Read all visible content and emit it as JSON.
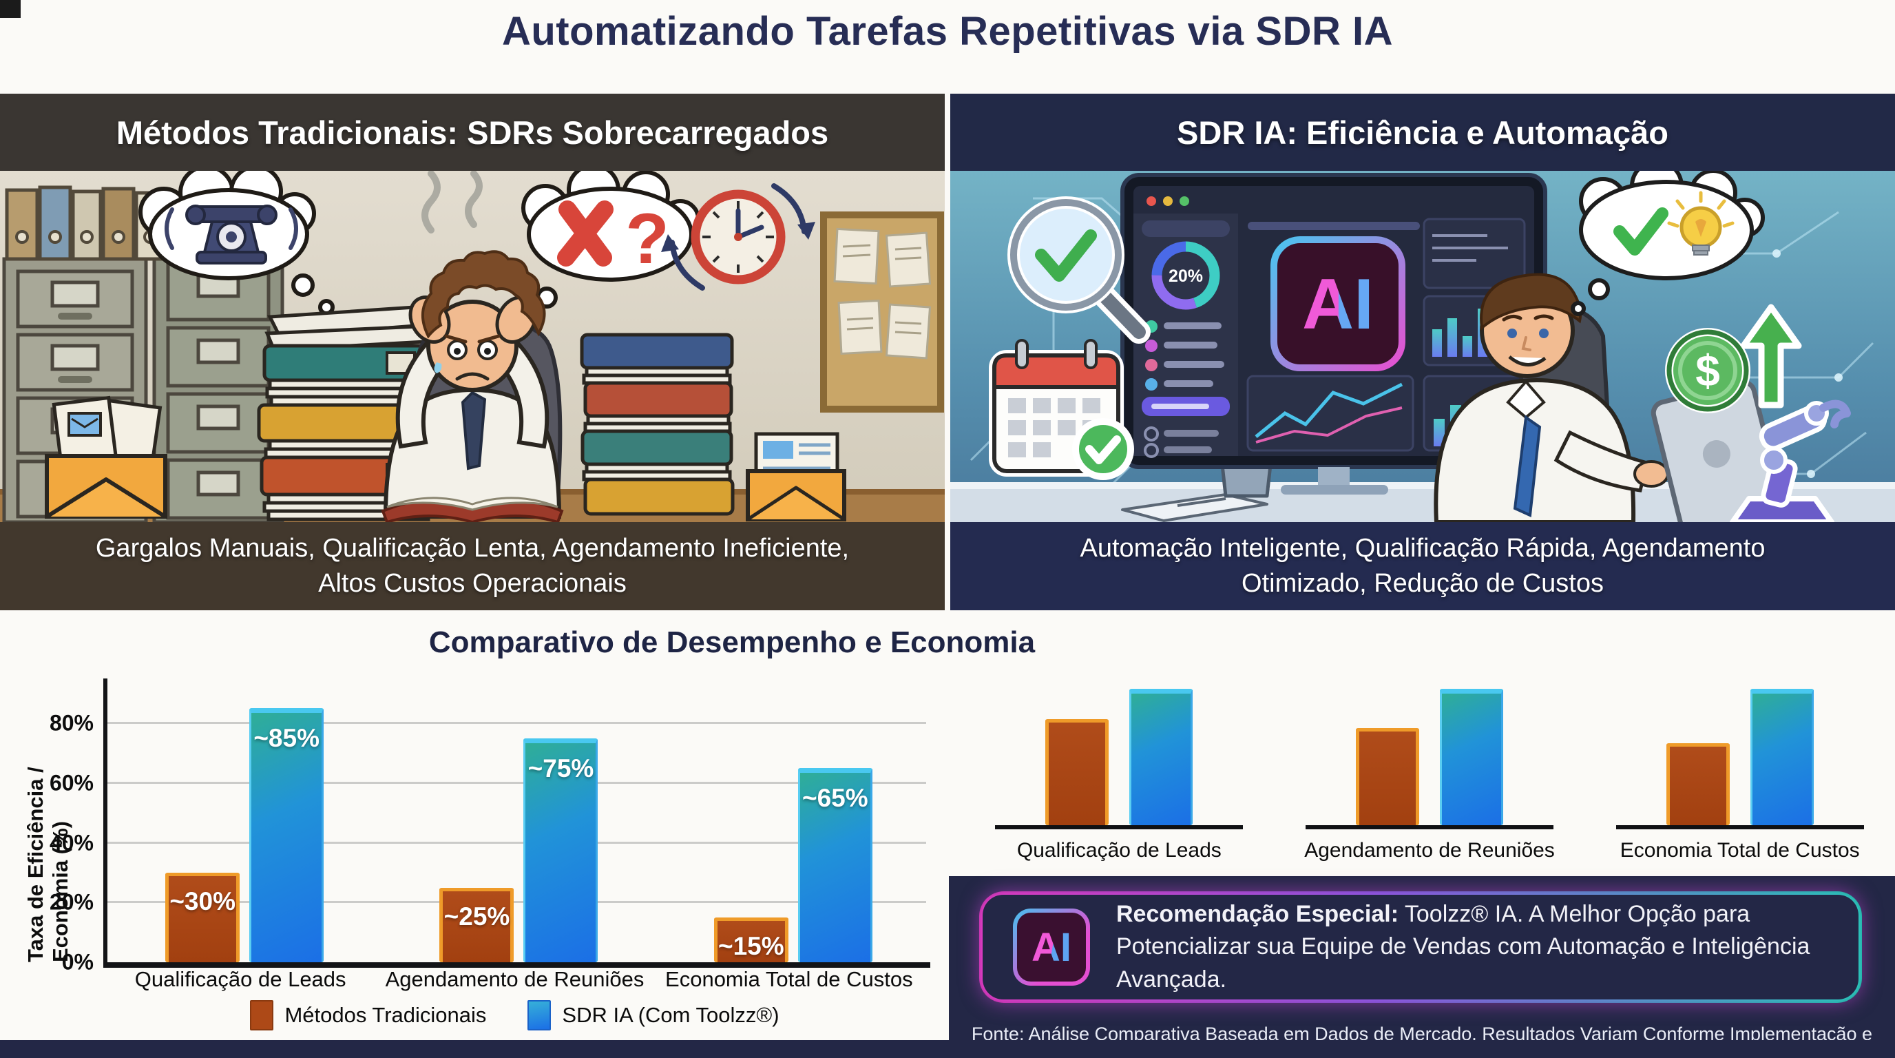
{
  "title": "Automatizando Tarefas Repetitivas via SDR IA",
  "left_panel": {
    "header": "Métodos Tradicionais: SDRs Sobrecarregados",
    "caption_line1": "Gargalos Manuais, Qualificação Lenta, Agendamento Ineficiente,",
    "caption_line2": "Altos Custos Operacionais",
    "scene": {
      "question_mark": "?",
      "icons": [
        "filing-cabinets",
        "binders-row",
        "smoke",
        "ringing-phone-thought-bubble",
        "error-question-thought-bubble",
        "clock-with-arrows",
        "corkboard-notes",
        "mail-stack-sticker",
        "email-letter-sticker",
        "binder-stacks",
        "stressed-worker",
        "open-book"
      ]
    }
  },
  "right_panel": {
    "header": "SDR IA: Eficiência e Automação",
    "caption_line1": "Automação Inteligente, Qualificação Rápida, Agendamento",
    "caption_line2": "Otimizado, Redução de Custos",
    "monitor": {
      "donut_label": "20%",
      "ai_label": "AI"
    },
    "stickers": {
      "dollar_symbol": "$"
    },
    "scene": {
      "icons": [
        "circuit-lines",
        "magnifier-with-check",
        "calendar-with-check",
        "ai-dashboard-monitor",
        "happy-worker",
        "tablet",
        "idea-thought-bubble-check-lightbulb",
        "dollar-coin-up-arrow",
        "robot-arm"
      ]
    }
  },
  "section_title": "Comparativo de Desempenho e Economia",
  "chart_data": [
    {
      "type": "bar",
      "title": "Comparativo de Desempenho e Economia",
      "ylabel": "Taxa de Eficiência / Economia (%)",
      "xlabel": "",
      "categories": [
        "Qualificação de Leads",
        "Agendamento de Reuniões",
        "Economia Total de Custos"
      ],
      "series": [
        {
          "name": "Métodos Tradicionais",
          "values": [
            30,
            25,
            15
          ],
          "bar_labels": [
            "~30%",
            "~25%",
            "~15%"
          ],
          "color": "#ad4917"
        },
        {
          "name": "SDR IA (Com Toolzz®)",
          "values": [
            85,
            75,
            65
          ],
          "bar_labels": [
            "~85%",
            "~75%",
            "~65%"
          ],
          "color": "#1d76e8"
        }
      ],
      "ytick_values": [
        0,
        20,
        40,
        60,
        80
      ],
      "ytick_labels": [
        "0%",
        "20%",
        "40%",
        "60%",
        "80%"
      ],
      "ylim": [
        0,
        95
      ],
      "grid": true,
      "legend_position": "bottom"
    },
    {
      "type": "bar",
      "subtype": "decorative-mini-multiples",
      "title": "",
      "categories": [
        "Qualificação de Leads",
        "Agendamento de Reuniões",
        "Economia Total de Custos"
      ],
      "series": [
        {
          "name": "Métodos Tradicionais",
          "values": [
            78,
            71,
            60
          ],
          "color": "#ad4917"
        },
        {
          "name": "SDR IA (Com Toolzz®)",
          "values": [
            100,
            100,
            100
          ],
          "color": "#1d76e8"
        }
      ],
      "ylim": [
        0,
        100
      ],
      "grid": false,
      "note": "Unlabeled mini bar charts echoing the main comparison; blue bars reach the top of the plot area."
    }
  ],
  "recommendation": {
    "ai_badge": "AI",
    "bold": "Recomendação Especial:",
    "text": " Toolzz® IA. A Melhor Opção para Potencializar sua Equipe de Vendas com Automação e Inteligência Avançada."
  },
  "footer": "Fonte: Análise Comparativa Baseada em Dados de Mercado. Resultados Variam Conforme Implementação e Setor.",
  "colors": {
    "title_navy": "#272d55",
    "left_header_bg": "#3a3632",
    "left_caption_bg": "#42382d",
    "right_header_bg": "#222947",
    "right_caption_bg": "#242b50",
    "traditional_bar": "#ad4917",
    "traditional_bar_border": "#ef9b29",
    "ia_bar_top": "#2fae97",
    "ia_bar_bottom": "#1b6fe6",
    "ia_bar_edge": "#49c8f0",
    "navy_panel": "#232746",
    "neon_pink": "#ea3fcf",
    "neon_purple": "#9a5cf0",
    "neon_teal": "#2fd3ca"
  }
}
